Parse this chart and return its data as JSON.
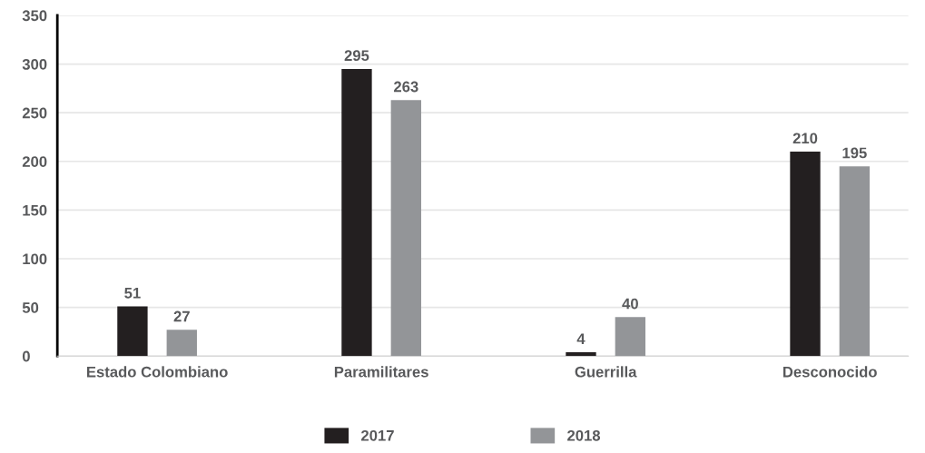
{
  "chart_data": {
    "type": "bar",
    "categories": [
      "Estado Colombiano",
      "Paramilitares",
      "Guerrilla",
      "Desconocido"
    ],
    "series": [
      {
        "name": "2017",
        "color": "#231f20",
        "values": [
          51,
          295,
          4,
          210
        ]
      },
      {
        "name": "2018",
        "color": "#939598",
        "values": [
          27,
          263,
          40,
          195
        ]
      }
    ],
    "ylim": [
      0,
      350
    ],
    "yticks": [
      0,
      50,
      100,
      150,
      200,
      250,
      300,
      350
    ],
    "grid": "y",
    "legend": "bottom",
    "data_labels": true
  }
}
